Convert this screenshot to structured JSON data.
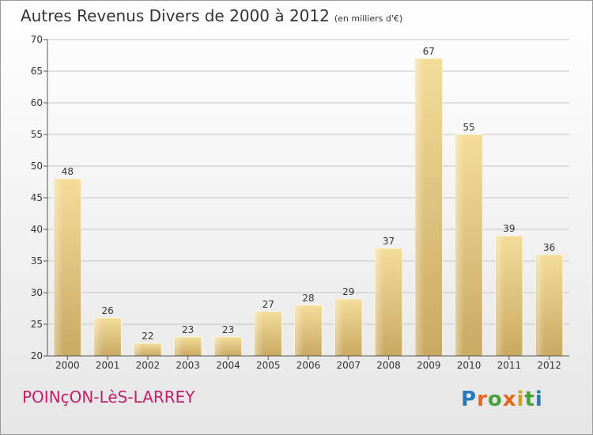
{
  "title": "Autres Revenus Divers de 2000 à 2012",
  "subtitle": "(en milliers d'€)",
  "commune": "POINçON-LèS-LARREY",
  "logo": {
    "text": "Proxiti",
    "colors": [
      "#2a7ab8",
      "#e8641b",
      "#4aa13a",
      "#d4a11a"
    ]
  },
  "chart_data": {
    "type": "bar",
    "categories": [
      "2000",
      "2001",
      "2002",
      "2003",
      "2004",
      "2005",
      "2006",
      "2007",
      "2008",
      "2009",
      "2010",
      "2011",
      "2012"
    ],
    "values": [
      48,
      26,
      22,
      23,
      23,
      27,
      28,
      29,
      37,
      67,
      55,
      39,
      36
    ],
    "ylim": [
      20,
      70
    ],
    "yticks": [
      20,
      25,
      30,
      35,
      40,
      45,
      50,
      55,
      60,
      65,
      70
    ],
    "grid": true,
    "bar_color": "#e3c47e"
  }
}
